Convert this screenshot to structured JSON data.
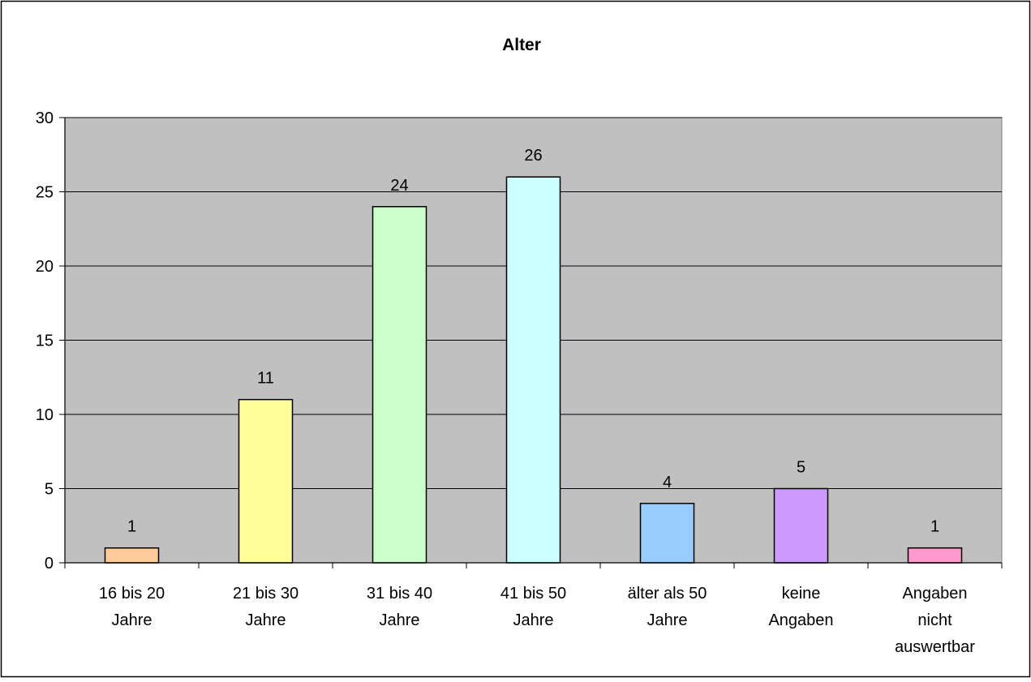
{
  "chart_data": {
    "type": "bar",
    "title": "Alter",
    "xlabel": "",
    "ylabel": "",
    "categories": [
      [
        "16 bis 20",
        "Jahre"
      ],
      [
        "21 bis 30",
        "Jahre"
      ],
      [
        "31 bis 40",
        "Jahre"
      ],
      [
        "41 bis 50",
        "Jahre"
      ],
      [
        "älter als 50",
        "Jahre"
      ],
      [
        "keine",
        "Angaben"
      ],
      [
        "Angaben",
        "nicht",
        "auswertbar"
      ]
    ],
    "values": [
      1,
      11,
      24,
      26,
      4,
      5,
      1
    ],
    "data_labels": [
      "1",
      "11",
      "24",
      "26",
      "4",
      "5",
      "1"
    ],
    "bar_colors": [
      "#FFCC99",
      "#FFFF99",
      "#CCFFCC",
      "#CCFFFF",
      "#99CCFF",
      "#CC99FF",
      "#FF99CC"
    ],
    "ylim": [
      0,
      30
    ],
    "yticks": [
      0,
      5,
      10,
      15,
      20,
      25,
      30
    ],
    "grid": true,
    "legend": "none",
    "colors": {
      "plot_background": "#C0C0C0",
      "page_background": "#FFFFFF",
      "bar_outline": "#000000",
      "gridline": "#000000"
    }
  }
}
